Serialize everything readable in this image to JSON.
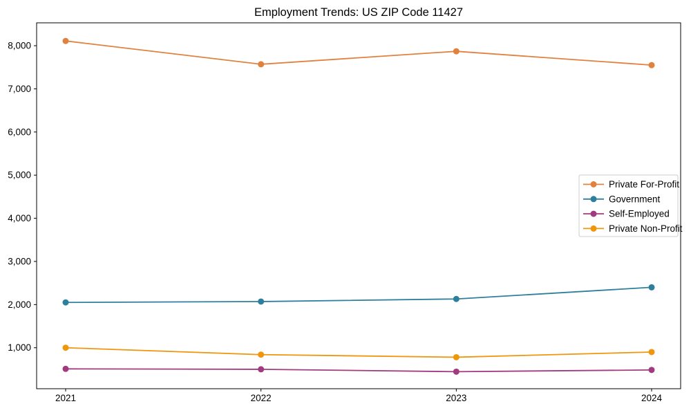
{
  "chart_data": {
    "type": "line",
    "title": "Employment Trends: US ZIP Code 11427",
    "x": [
      "2021",
      "2022",
      "2023",
      "2024"
    ],
    "series": [
      {
        "name": "Private For-Profit",
        "color": "#e1813e",
        "values": [
          8110,
          7570,
          7870,
          7550
        ]
      },
      {
        "name": "Government",
        "color": "#2e7f9c",
        "values": [
          2050,
          2070,
          2130,
          2400
        ]
      },
      {
        "name": "Self-Employed",
        "color": "#a23a80",
        "values": [
          510,
          500,
          445,
          485
        ]
      },
      {
        "name": "Private Non-Profit",
        "color": "#f0960c",
        "values": [
          1000,
          840,
          780,
          900
        ]
      }
    ],
    "ylim": [
      50,
      8530
    ],
    "yticks": [
      1000,
      2000,
      3000,
      4000,
      5000,
      6000,
      7000,
      8000
    ],
    "ytick_labels": [
      "1,000",
      "2,000",
      "3,000",
      "4,000",
      "5,000",
      "6,000",
      "7,000",
      "8,000"
    ],
    "xlabel": "",
    "ylabel": "",
    "grid": false,
    "legend_position": "center-right",
    "axis_color": "#000000",
    "legend_border_color": "#cccccc"
  }
}
